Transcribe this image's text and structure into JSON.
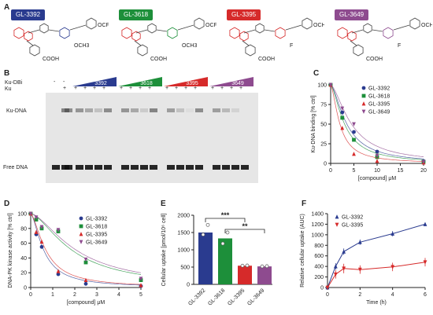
{
  "panels": {
    "A": {
      "letter": "A",
      "compounds": [
        {
          "label": "GL-3392",
          "color": "#2a3b8f",
          "substituents": [
            "OCH3",
            "OCF3",
            "COOH"
          ]
        },
        {
          "label": "GL-3618",
          "color": "#1d8f3a",
          "substituents": [
            "OCH3",
            "OCF3",
            "COOH"
          ]
        },
        {
          "label": "GL-3395",
          "color": "#d62a2a",
          "substituents": [
            "F",
            "OCH3",
            "COOH"
          ]
        },
        {
          "label": "GL-3649",
          "color": "#8e4b8f",
          "substituents": [
            "F",
            "OCH3",
            "COOH"
          ]
        }
      ]
    },
    "B": {
      "letter": "B",
      "row_labels": [
        "Ku-DBi",
        "Ku"
      ],
      "band_labels": [
        "Ku-DNA",
        "Free DNA"
      ],
      "neg_lane": "-",
      "neg_lanes": [
        "-",
        "-"
      ],
      "plus": "+",
      "wedges": [
        "3392",
        "3618",
        "3395",
        "3649"
      ],
      "wedge_colors": [
        "#2a3b8f",
        "#1d8f3a",
        "#d62a2a",
        "#8e4b8f"
      ]
    },
    "C": {
      "letter": "C"
    },
    "D": {
      "letter": "D"
    },
    "E": {
      "letter": "E"
    },
    "F": {
      "letter": "F"
    }
  },
  "chart_data": [
    {
      "panel": "C",
      "type": "scatter",
      "xlabel": "[compound] μM",
      "ylabel": "Ku-DNA binding [% ctrl]",
      "xlim": [
        0,
        20
      ],
      "ylim": [
        0,
        100
      ],
      "xticks": [
        0,
        5,
        10,
        15,
        20
      ],
      "yticks": [
        0,
        25,
        50,
        75,
        100
      ],
      "legend": "top-right",
      "series": [
        {
          "name": "GL-3392",
          "color": "#2a3b8f",
          "marker": "circle",
          "x": [
            0,
            2.5,
            5,
            10,
            20
          ],
          "y": [
            100,
            65,
            40,
            15,
            3
          ]
        },
        {
          "name": "GL-3618",
          "color": "#1d8f3a",
          "marker": "square",
          "x": [
            0,
            2.5,
            5,
            10,
            20
          ],
          "y": [
            100,
            58,
            30,
            8,
            2
          ]
        },
        {
          "name": "GL-3395",
          "color": "#d62a2a",
          "marker": "triangle",
          "x": [
            0,
            2.5,
            5,
            10,
            20
          ],
          "y": [
            100,
            45,
            12,
            3,
            1
          ]
        },
        {
          "name": "GL-3649",
          "color": "#8e4b8f",
          "marker": "triangle-down",
          "x": [
            0,
            2.5,
            5,
            10,
            20
          ],
          "y": [
            100,
            70,
            50,
            10,
            2
          ]
        }
      ]
    },
    {
      "panel": "D",
      "type": "scatter",
      "xlabel": "[compound] μM",
      "ylabel": "DNA-PK kinase activity [% ctrl]",
      "xlim": [
        0,
        5
      ],
      "ylim": [
        0,
        100
      ],
      "xticks": [
        0,
        1,
        2,
        3,
        4,
        5
      ],
      "yticks": [
        0,
        20,
        40,
        60,
        80,
        100
      ],
      "legend": "top-right",
      "series": [
        {
          "name": "GL-3392",
          "color": "#2a3b8f",
          "marker": "circle",
          "x": [
            0,
            0.25,
            0.5,
            1.25,
            2.5,
            5
          ],
          "y": [
            100,
            72,
            55,
            18,
            5,
            2
          ]
        },
        {
          "name": "GL-3618",
          "color": "#1d8f3a",
          "marker": "square",
          "x": [
            0,
            0.25,
            0.5,
            1.25,
            2.5,
            5
          ],
          "y": [
            100,
            92,
            80,
            76,
            34,
            10
          ]
        },
        {
          "name": "GL-3395",
          "color": "#d62a2a",
          "marker": "triangle",
          "x": [
            0,
            0.25,
            0.5,
            1.25,
            2.5,
            5
          ],
          "y": [
            100,
            75,
            62,
            22,
            10,
            3
          ]
        },
        {
          "name": "GL-3649",
          "color": "#8e4b8f",
          "marker": "triangle-down",
          "x": [
            0,
            0.25,
            0.5,
            1.25,
            2.5,
            5
          ],
          "y": [
            100,
            95,
            82,
            78,
            38,
            12
          ]
        }
      ]
    },
    {
      "panel": "E",
      "type": "bar",
      "ylabel": "Cellular uptake [pmol/10⁶ cell]",
      "ylim": [
        0,
        2000
      ],
      "yticks": [
        0,
        500,
        1000,
        1500,
        2000
      ],
      "categories": [
        "GL-3392",
        "GL-3618",
        "GL-3395",
        "GL-3649"
      ],
      "colors": [
        "#2a3b8f",
        "#1d8f3a",
        "#d62a2a",
        "#8e4b8f"
      ],
      "values": [
        1500,
        1330,
        540,
        520
      ],
      "points": [
        [
          1440,
          1720
        ],
        [
          1180,
          1500
        ],
        [
          540,
          545
        ],
        [
          520,
          525
        ]
      ],
      "significance": [
        {
          "from": 0,
          "to": 2,
          "label": "***"
        },
        {
          "from": 1,
          "to": 3,
          "label": "**"
        }
      ]
    },
    {
      "panel": "F",
      "type": "line",
      "xlabel": "Time (h)",
      "ylabel": "Relative cellular uptake (AUC)",
      "xlim": [
        0,
        6
      ],
      "ylim": [
        0,
        1400
      ],
      "xticks": [
        0,
        2,
        4,
        6
      ],
      "yticks": [
        0,
        200,
        400,
        600,
        800,
        1000,
        1200,
        1400
      ],
      "legend": "top-left",
      "series": [
        {
          "name": "GL-3392",
          "color": "#2a3b8f",
          "marker": "triangle",
          "x": [
            0,
            0.5,
            1,
            2,
            4,
            6
          ],
          "y": [
            0,
            400,
            680,
            860,
            1020,
            1200
          ],
          "err": [
            0,
            60,
            60,
            50,
            50,
            30
          ]
        },
        {
          "name": "GL-3395",
          "color": "#d62a2a",
          "marker": "triangle-down",
          "x": [
            0,
            0.5,
            1,
            2,
            4,
            6
          ],
          "y": [
            0,
            250,
            360,
            340,
            390,
            480
          ],
          "err": [
            0,
            80,
            90,
            80,
            80,
            80
          ]
        }
      ]
    }
  ]
}
